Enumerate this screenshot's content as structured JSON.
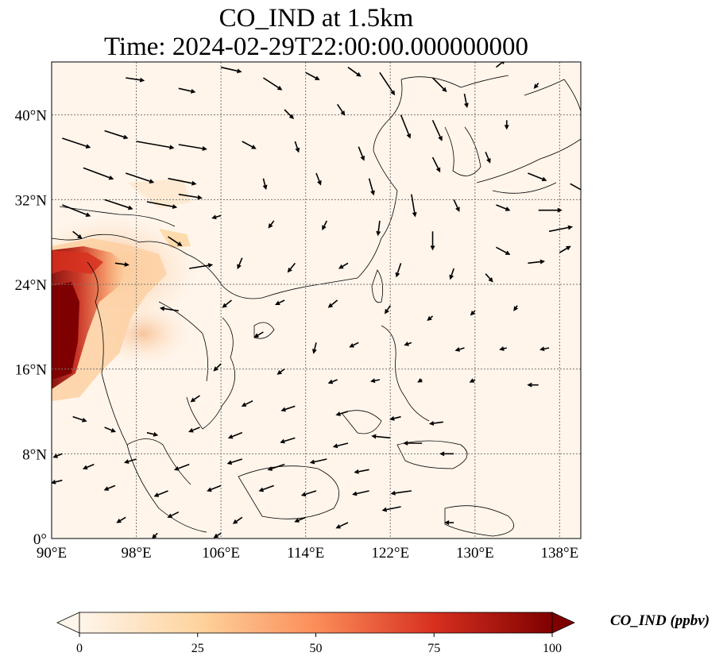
{
  "title": {
    "line1": "CO_IND at 1.5km",
    "line2": "Time: 2024-02-29T22:00:00.000000000"
  },
  "map": {
    "lon_range": [
      90,
      140
    ],
    "lat_range": [
      0,
      45
    ],
    "x_ticks": [
      "90°E",
      "98°E",
      "106°E",
      "114°E",
      "122°E",
      "130°E",
      "138°E"
    ],
    "x_tick_values": [
      90,
      98,
      106,
      114,
      122,
      130,
      138
    ],
    "y_ticks": [
      "0°",
      "8°N",
      "16°N",
      "24°N",
      "32°N",
      "40°N"
    ],
    "y_tick_values": [
      0,
      8,
      16,
      24,
      32,
      40
    ],
    "gridlines": true,
    "background_color": "#fff5eb",
    "variable": "CO_IND",
    "height": "1.5km"
  },
  "colorbar": {
    "label": "CO_IND (ppbv)",
    "ticks": [
      "0",
      "25",
      "50",
      "75",
      "100"
    ],
    "tick_values": [
      0,
      25,
      50,
      75,
      100
    ],
    "range": [
      0,
      100
    ],
    "colormap": "OrRd",
    "colors": [
      "#fff5eb",
      "#fdd49e",
      "#fc8d59",
      "#d7301f",
      "#7f0000"
    ]
  },
  "wind_vectors": [
    {
      "lon": 91,
      "lat": 37.8,
      "u": 3.0,
      "v": -1.0
    },
    {
      "lon": 95,
      "lat": 38.5,
      "u": 2.5,
      "v": -0.8
    },
    {
      "lon": 98,
      "lat": 37.5,
      "u": 4.0,
      "v": -0.7
    },
    {
      "lon": 102,
      "lat": 37.2,
      "u": 3.0,
      "v": -0.5
    },
    {
      "lon": 93,
      "lat": 35,
      "u": 3.2,
      "v": -1.2
    },
    {
      "lon": 97,
      "lat": 34.5,
      "u": 3.0,
      "v": -1.0
    },
    {
      "lon": 101,
      "lat": 34,
      "u": 3.0,
      "v": -0.6
    },
    {
      "lon": 91,
      "lat": 31.5,
      "u": 3.0,
      "v": -1.2
    },
    {
      "lon": 95,
      "lat": 32,
      "u": 3.0,
      "v": -1.0
    },
    {
      "lon": 99,
      "lat": 31.8,
      "u": 3.2,
      "v": -0.6
    },
    {
      "lon": 102,
      "lat": 32.5,
      "u": 2.5,
      "v": -0.4
    },
    {
      "lon": 92,
      "lat": 29,
      "u": 1.0,
      "v": -0.8
    },
    {
      "lon": 101,
      "lat": 28.5,
      "u": 1.5,
      "v": -1.0
    },
    {
      "lon": 103,
      "lat": 25.5,
      "u": 2.5,
      "v": 0.4
    },
    {
      "lon": 96,
      "lat": 26,
      "u": 1.5,
      "v": -0.2
    },
    {
      "lon": 102,
      "lat": 21.5,
      "u": -2.0,
      "v": 0.3
    },
    {
      "lon": 97,
      "lat": 43.5,
      "u": 2.0,
      "v": -0.3
    },
    {
      "lon": 102,
      "lat": 42.5,
      "u": 1.8,
      "v": -0.4
    },
    {
      "lon": 106,
      "lat": 44.5,
      "u": 2.2,
      "v": -0.5
    },
    {
      "lon": 110,
      "lat": 43.5,
      "u": 2.0,
      "v": -1.3
    },
    {
      "lon": 114,
      "lat": 44,
      "u": 1.5,
      "v": -0.8
    },
    {
      "lon": 118,
      "lat": 44.5,
      "u": 1.4,
      "v": -1.0
    },
    {
      "lon": 121,
      "lat": 44,
      "u": 1.6,
      "v": -2.4
    },
    {
      "lon": 126,
      "lat": 43.5,
      "u": 1.5,
      "v": -1.5
    },
    {
      "lon": 129,
      "lat": 42,
      "u": 0.3,
      "v": -1.5
    },
    {
      "lon": 132,
      "lat": 44.5,
      "u": 1.0,
      "v": 0.8
    },
    {
      "lon": 136,
      "lat": 43,
      "u": -0.5,
      "v": -0.6
    },
    {
      "lon": 112,
      "lat": 40.5,
      "u": 1.0,
      "v": -1.0
    },
    {
      "lon": 117,
      "lat": 41,
      "u": 0.8,
      "v": -1.2
    },
    {
      "lon": 123,
      "lat": 40,
      "u": 1.0,
      "v": -2.5
    },
    {
      "lon": 126,
      "lat": 39.5,
      "u": 1.0,
      "v": -2.2
    },
    {
      "lon": 133,
      "lat": 39.5,
      "u": 0.0,
      "v": -1.0
    },
    {
      "lon": 108,
      "lat": 37.5,
      "u": 1.5,
      "v": -0.8
    },
    {
      "lon": 113,
      "lat": 37.5,
      "u": 0.4,
      "v": -1.2
    },
    {
      "lon": 119,
      "lat": 37,
      "u": 0.6,
      "v": -1.5
    },
    {
      "lon": 126,
      "lat": 36,
      "u": 0.8,
      "v": -1.6
    },
    {
      "lon": 131,
      "lat": 36.5,
      "u": 0.5,
      "v": -1.2
    },
    {
      "lon": 135,
      "lat": 34.5,
      "u": 2.0,
      "v": -0.8
    },
    {
      "lon": 139,
      "lat": 33.5,
      "u": 1.8,
      "v": -1.0
    },
    {
      "lon": 110,
      "lat": 34,
      "u": 0.3,
      "v": -1.2
    },
    {
      "lon": 115,
      "lat": 34.5,
      "u": 0.5,
      "v": -1.3
    },
    {
      "lon": 120,
      "lat": 34,
      "u": 0.5,
      "v": -1.8
    },
    {
      "lon": 124,
      "lat": 32.5,
      "u": 0.4,
      "v": -2.4
    },
    {
      "lon": 128,
      "lat": 32,
      "u": 0.6,
      "v": -1.3
    },
    {
      "lon": 132,
      "lat": 31.5,
      "u": 1.5,
      "v": -0.6
    },
    {
      "lon": 136,
      "lat": 31,
      "u": 2.5,
      "v": 0.0
    },
    {
      "lon": 137,
      "lat": 29,
      "u": 2.5,
      "v": 0.5
    },
    {
      "lon": 106,
      "lat": 30.5,
      "u": -1.0,
      "v": -0.3
    },
    {
      "lon": 111,
      "lat": 30,
      "u": -0.6,
      "v": -0.8
    },
    {
      "lon": 116,
      "lat": 30,
      "u": -0.5,
      "v": -1.0
    },
    {
      "lon": 121,
      "lat": 30,
      "u": -0.2,
      "v": -1.6
    },
    {
      "lon": 126,
      "lat": 29,
      "u": 0.0,
      "v": -2.0
    },
    {
      "lon": 132,
      "lat": 27.5,
      "u": 1.5,
      "v": -0.8
    },
    {
      "lon": 135,
      "lat": 26,
      "u": 1.8,
      "v": 0.2
    },
    {
      "lon": 138,
      "lat": 27,
      "u": 1.2,
      "v": 0.7
    },
    {
      "lon": 108,
      "lat": 26.5,
      "u": -0.5,
      "v": -1.2
    },
    {
      "lon": 113,
      "lat": 26,
      "u": -0.8,
      "v": -1.0
    },
    {
      "lon": 118,
      "lat": 26,
      "u": -1.0,
      "v": -0.6
    },
    {
      "lon": 123,
      "lat": 26,
      "u": -0.5,
      "v": -1.5
    },
    {
      "lon": 128,
      "lat": 25.5,
      "u": -0.4,
      "v": -1.2
    },
    {
      "lon": 131,
      "lat": 25,
      "u": 0.8,
      "v": -0.9
    },
    {
      "lon": 107,
      "lat": 22.5,
      "u": -1.0,
      "v": -0.8
    },
    {
      "lon": 112,
      "lat": 22.5,
      "u": -1.0,
      "v": -0.5
    },
    {
      "lon": 117,
      "lat": 22.5,
      "u": -1.0,
      "v": -0.8
    },
    {
      "lon": 122,
      "lat": 22,
      "u": -0.6,
      "v": -0.9
    },
    {
      "lon": 126,
      "lat": 21,
      "u": -0.6,
      "v": -0.5
    },
    {
      "lon": 130,
      "lat": 21.5,
      "u": -0.5,
      "v": -0.5
    },
    {
      "lon": 134,
      "lat": 22,
      "u": -0.4,
      "v": -0.6
    },
    {
      "lon": 110,
      "lat": 19.5,
      "u": -1.0,
      "v": -0.6
    },
    {
      "lon": 115,
      "lat": 18.5,
      "u": -0.3,
      "v": -1.2
    },
    {
      "lon": 119,
      "lat": 18.5,
      "u": -1.0,
      "v": -0.5
    },
    {
      "lon": 124,
      "lat": 18.5,
      "u": -0.8,
      "v": -0.3
    },
    {
      "lon": 129,
      "lat": 18,
      "u": -1.0,
      "v": -0.3
    },
    {
      "lon": 133,
      "lat": 18,
      "u": -0.8,
      "v": -0.2
    },
    {
      "lon": 137,
      "lat": 18,
      "u": -1.0,
      "v": -0.2
    },
    {
      "lon": 106,
      "lat": 16.5,
      "u": -0.8,
      "v": -0.8
    },
    {
      "lon": 112,
      "lat": 16,
      "u": -0.8,
      "v": -0.6
    },
    {
      "lon": 117,
      "lat": 15,
      "u": -1.0,
      "v": -0.4
    },
    {
      "lon": 121,
      "lat": 15,
      "u": -1.0,
      "v": -0.2
    },
    {
      "lon": 125,
      "lat": 15,
      "u": -0.5,
      "v": -0.3
    },
    {
      "lon": 130,
      "lat": 15,
      "u": -0.6,
      "v": -0.3
    },
    {
      "lon": 136,
      "lat": 14.5,
      "u": -1.2,
      "v": 0.0
    },
    {
      "lon": 104,
      "lat": 13.5,
      "u": -1.0,
      "v": -0.7
    },
    {
      "lon": 109,
      "lat": 13,
      "u": -1.2,
      "v": -0.6
    },
    {
      "lon": 113,
      "lat": 12.5,
      "u": -1.5,
      "v": -0.5
    },
    {
      "lon": 118,
      "lat": 12,
      "u": -1.3,
      "v": -0.4
    },
    {
      "lon": 123,
      "lat": 11.5,
      "u": -1.2,
      "v": -0.3
    },
    {
      "lon": 127,
      "lat": 11,
      "u": -1.5,
      "v": -0.2
    },
    {
      "lon": 104,
      "lat": 10.5,
      "u": -1.2,
      "v": -0.5
    },
    {
      "lon": 108,
      "lat": 10,
      "u": -1.5,
      "v": -0.6
    },
    {
      "lon": 113,
      "lat": 9.5,
      "u": -1.6,
      "v": -0.5
    },
    {
      "lon": 118,
      "lat": 9,
      "u": -1.6,
      "v": -0.4
    },
    {
      "lon": 122,
      "lat": 9.5,
      "u": -2.0,
      "v": 0.2
    },
    {
      "lon": 125,
      "lat": 9,
      "u": -2.0,
      "v": 0.0
    },
    {
      "lon": 128,
      "lat": 8,
      "u": -1.5,
      "v": 0.0
    },
    {
      "lon": 92,
      "lat": 11.5,
      "u": 1.5,
      "v": -0.5
    },
    {
      "lon": 95,
      "lat": 10.5,
      "u": 1.2,
      "v": -0.5
    },
    {
      "lon": 99,
      "lat": 10,
      "u": 1.2,
      "v": -0.3
    },
    {
      "lon": 91,
      "lat": 8,
      "u": -1.0,
      "v": -0.4
    },
    {
      "lon": 94,
      "lat": 7,
      "u": -1.2,
      "v": -0.5
    },
    {
      "lon": 98,
      "lat": 7.5,
      "u": -1.3,
      "v": -0.4
    },
    {
      "lon": 103,
      "lat": 7,
      "u": -1.6,
      "v": -0.6
    },
    {
      "lon": 108,
      "lat": 7.5,
      "u": -1.6,
      "v": -0.5
    },
    {
      "lon": 112,
      "lat": 7,
      "u": -1.8,
      "v": -0.6
    },
    {
      "lon": 116,
      "lat": 7.5,
      "u": -1.8,
      "v": -0.4
    },
    {
      "lon": 120,
      "lat": 6.5,
      "u": -1.6,
      "v": -0.3
    },
    {
      "lon": 91,
      "lat": 5.5,
      "u": -1.2,
      "v": -0.3
    },
    {
      "lon": 96,
      "lat": 5,
      "u": -1.2,
      "v": -0.5
    },
    {
      "lon": 101,
      "lat": 4.5,
      "u": -1.5,
      "v": -0.6
    },
    {
      "lon": 106,
      "lat": 5,
      "u": -1.5,
      "v": -0.6
    },
    {
      "lon": 111,
      "lat": 5,
      "u": -1.6,
      "v": -0.6
    },
    {
      "lon": 115,
      "lat": 4.5,
      "u": -1.6,
      "v": -0.5
    },
    {
      "lon": 120,
      "lat": 4.5,
      "u": -1.8,
      "v": -0.4
    },
    {
      "lon": 124,
      "lat": 4.5,
      "u": -2.2,
      "v": -0.3
    },
    {
      "lon": 97,
      "lat": 2,
      "u": -1.0,
      "v": -0.6
    },
    {
      "lon": 102,
      "lat": 2.5,
      "u": -1.2,
      "v": -0.6
    },
    {
      "lon": 108,
      "lat": 2,
      "u": -1.0,
      "v": -0.7
    },
    {
      "lon": 114,
      "lat": 2,
      "u": -1.2,
      "v": -0.5
    },
    {
      "lon": 118,
      "lat": 1.5,
      "u": -1.3,
      "v": -0.6
    },
    {
      "lon": 123,
      "lat": 3,
      "u": -2.0,
      "v": -0.4
    },
    {
      "lon": 128,
      "lat": 1.5,
      "u": -1.0,
      "v": 0.0
    },
    {
      "lon": 100,
      "lat": 0.5,
      "u": -0.6,
      "v": -0.6
    },
    {
      "lon": 106,
      "lat": 0.5,
      "u": -0.8,
      "v": -0.5
    }
  ]
}
